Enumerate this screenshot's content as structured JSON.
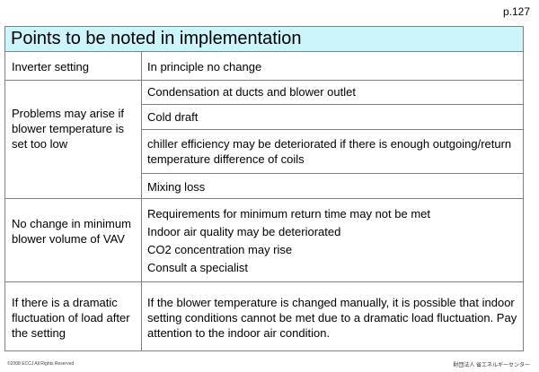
{
  "page_number": "p.127",
  "title": "Points to be noted in implementation",
  "rows": [
    {
      "left": "Inverter setting",
      "right": [
        "In principle no change"
      ]
    },
    {
      "left": "Problems may arise if blower temperature is set too low",
      "right": [
        "Condensation at ducts and blower outlet",
        "Cold draft",
        "chiller efficiency may be deteriorated if there is enough outgoing/return temperature difference of coils",
        "Mixing loss"
      ]
    },
    {
      "left": "No change in minimum blower volume of VAV",
      "right": [
        "Requirements for minimum return time may not be met",
        "Indoor air quality may be deteriorated",
        "CO2 concentration may rise",
        "Consult a specialist"
      ]
    },
    {
      "left": "If there is a dramatic fluctuation of load after the setting",
      "right": [
        "If the blower temperature is changed manually, it is possible that indoor setting conditions cannot be met due to a dramatic load fluctuation. Pay attention to the indoor air condition."
      ]
    }
  ],
  "footer": {
    "left": "©2008 ECCJ All Rights Reserved",
    "right": "財団法人 省エネルギーセンター"
  }
}
